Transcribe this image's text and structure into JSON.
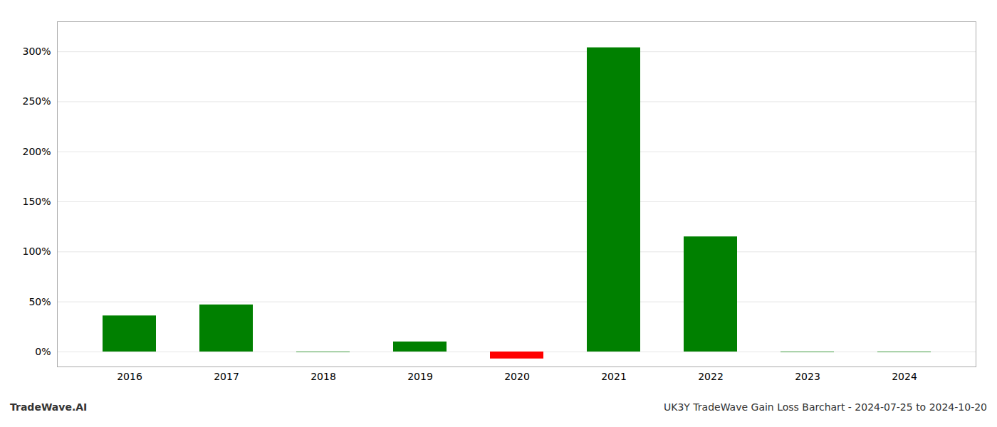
{
  "chart_data": {
    "type": "bar",
    "categories": [
      "2016",
      "2017",
      "2018",
      "2019",
      "2020",
      "2021",
      "2022",
      "2023",
      "2024"
    ],
    "values": [
      36,
      47,
      -0.5,
      10,
      -7,
      304,
      115,
      -0.5,
      -0.5
    ],
    "colors": [
      "#008000",
      "#008000",
      "#008000",
      "#008000",
      "#ff0000",
      "#008000",
      "#008000",
      "#008000",
      "#008000"
    ],
    "ylim": [
      -15,
      330
    ],
    "yticks": [
      {
        "value": 0,
        "label": "0%"
      },
      {
        "value": 50,
        "label": "50%"
      },
      {
        "value": 100,
        "label": "100%"
      },
      {
        "value": 150,
        "label": "150%"
      },
      {
        "value": 200,
        "label": "200%"
      },
      {
        "value": 250,
        "label": "250%"
      },
      {
        "value": 300,
        "label": "300%"
      }
    ],
    "grid": true,
    "annotations": [
      "TradeWave.AI",
      "UK3Y TradeWave Gain Loss Barchart - 2024-07-25 to 2024-10-20"
    ]
  }
}
